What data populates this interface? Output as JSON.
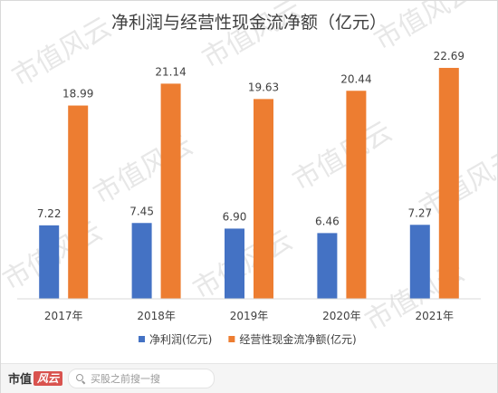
{
  "chart_data": {
    "type": "bar",
    "title": "净利润与经营性现金流净额（亿元）",
    "categories": [
      "2017年",
      "2018年",
      "2019年",
      "2020年",
      "2021年"
    ],
    "series": [
      {
        "name": "净利润(亿元)",
        "values": [
          7.22,
          7.45,
          6.9,
          6.46,
          7.27
        ],
        "color": "#4472C4"
      },
      {
        "name": "经营性现金流净额(亿元)",
        "values": [
          18.99,
          21.14,
          19.63,
          20.44,
          22.69
        ],
        "color": "#ED7D31"
      }
    ],
    "value_labels": [
      [
        "7.22",
        "7.45",
        "6.90",
        "6.46",
        "7.27"
      ],
      [
        "18.99",
        "21.14",
        "19.63",
        "20.44",
        "22.69"
      ]
    ],
    "ylim": [
      0,
      25
    ],
    "grid": false,
    "legend": "bottom"
  },
  "watermark": {
    "text": "市值风云"
  },
  "footer": {
    "logo_text": "市值",
    "logo_script": "风云",
    "search_placeholder": "买股之前搜一搜",
    "search_icon": "search-icon"
  }
}
